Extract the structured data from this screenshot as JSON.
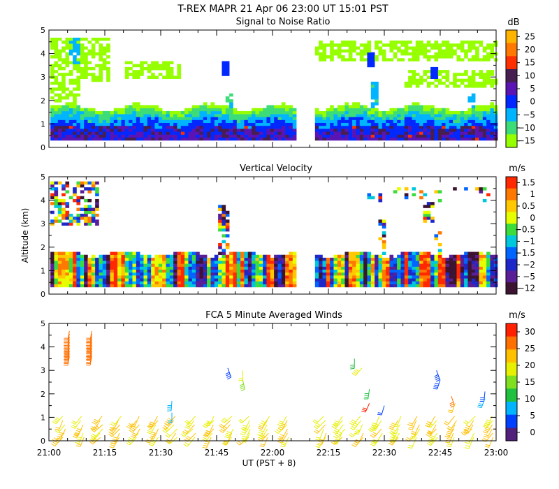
{
  "header": {
    "title": "T-REX  MAPR 21 Apr 06  23:00 UT  15:01  PST"
  },
  "shared_axes": {
    "ylabel": "Altitude (km)",
    "xlabel": "UT  (PST + 8)",
    "x_ticks": [
      "21:00",
      "21:15",
      "21:30",
      "21:45",
      "22:00",
      "22:15",
      "22:30",
      "22:45",
      "23:00"
    ],
    "y_ticks": [
      "0",
      "1",
      "2",
      "3",
      "4",
      "5"
    ],
    "xlim_minutes": [
      0,
      120
    ],
    "ylim_km": [
      0,
      5
    ],
    "data_gap_minutes": [
      66,
      71
    ],
    "boundary_layer_top_km": 1.6
  },
  "chart_data": [
    {
      "type": "heatmap",
      "title": "Signal to Noise Ratio",
      "colorbar_unit": "dB",
      "colorbar_labels": [
        "25",
        "20",
        "15",
        "10",
        "5",
        "0",
        "−5",
        "−10",
        "−15"
      ],
      "colorbar_colors": [
        "#ffb400",
        "#ff7800",
        "#ff3000",
        "#461e50",
        "#5a14b4",
        "#0028ff",
        "#00b4ff",
        "#3cdc78",
        "#96ff00"
      ],
      "value_range_db": [
        -15,
        25
      ],
      "scale_top": "#ffb400"
    },
    {
      "type": "heatmap",
      "title": "Vertical Velocity",
      "colorbar_unit": "m/s",
      "colorbar_labels": [
        "1.5",
        "1",
        "0.5",
        "0",
        "−0.5",
        "−1",
        "−1.5",
        "−2",
        "−5",
        "−12"
      ],
      "colorbar_colors": [
        "#ff2800",
        "#ff7800",
        "#ffc800",
        "#e6ff00",
        "#3cdc3c",
        "#00c8dc",
        "#0064ff",
        "#1e28c8",
        "#5a1e96",
        "#3c1432"
      ],
      "value_range_ms": [
        -12,
        1.5
      ]
    },
    {
      "type": "barbs",
      "title": "FCA 5 Minute Averaged Winds",
      "colorbar_unit": "m/s",
      "colorbar_labels": [
        "30",
        "25",
        "20",
        "15",
        "10",
        "5",
        "0"
      ],
      "colorbar_colors": [
        "#ff2000",
        "#ff7000",
        "#ffc000",
        "#e6f000",
        "#80e020",
        "#20c040",
        "#00b4ff",
        "#0040ff",
        "#50207a"
      ],
      "value_range_ms": [
        0,
        30
      ]
    }
  ]
}
